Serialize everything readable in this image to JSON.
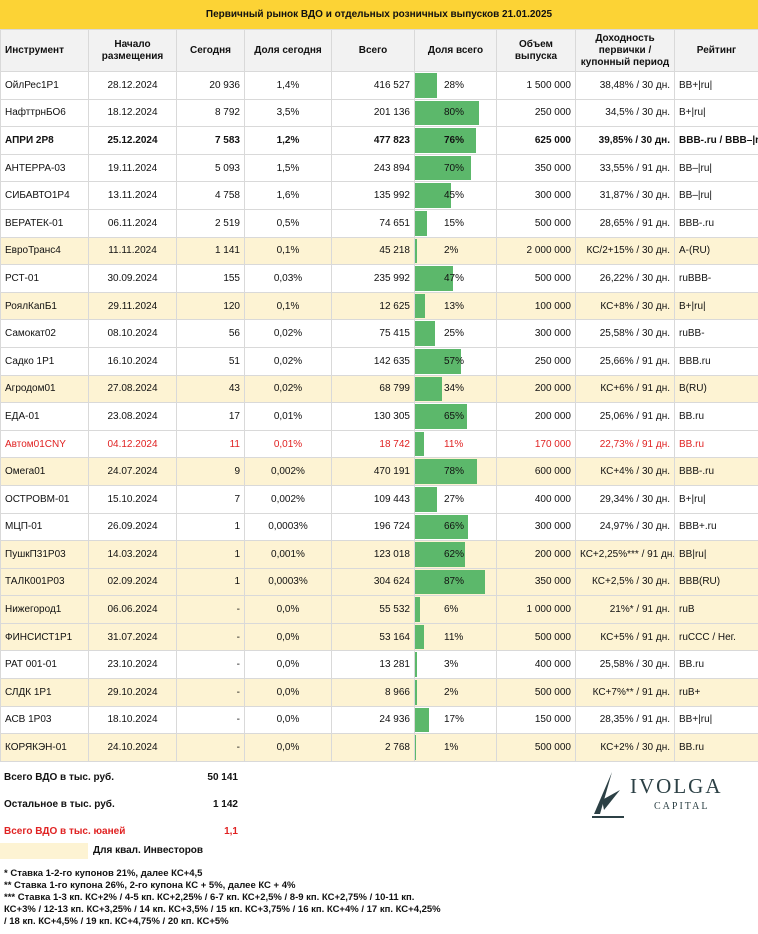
{
  "title": "Первичный рынок ВДО и отдельных розничных выпусков 21.01.2025",
  "colors": {
    "header_bg": "#fcd335",
    "highlight": "#fdf3d3",
    "bar": "#5cb86b",
    "red": "#e02222"
  },
  "columns": {
    "instrument": "Инструмент",
    "start": "Начало размещения",
    "today": "Сегодня",
    "share_today": "Доля сегодня",
    "total": "Всего",
    "share_total": "Доля всего",
    "volume": "Объем выпуска",
    "yield": "Доходность первички / купонный период",
    "rating": "Рейтинг"
  },
  "rows": [
    {
      "name": "ОйлРес1Р1",
      "start": "28.12.2024",
      "today": "20 936",
      "share_today": "1,4%",
      "total": "416 527",
      "share_total": "28%",
      "share_value": 28,
      "volume": "1 500 000",
      "yield": "38,48% / 30 дн.",
      "rating": "BB+|ru|",
      "hl": false,
      "bold": false,
      "red": false
    },
    {
      "name": "НафттрнБО6",
      "start": "18.12.2024",
      "today": "8 792",
      "share_today": "3,5%",
      "total": "201 136",
      "share_total": "80%",
      "share_value": 80,
      "volume": "250 000",
      "yield": "34,5% / 30 дн.",
      "rating": "B+|ru|",
      "hl": false,
      "bold": false,
      "red": false
    },
    {
      "name": "АПРИ 2Р8",
      "start": "25.12.2024",
      "today": "7 583",
      "share_today": "1,2%",
      "total": "477 823",
      "share_total": "76%",
      "share_value": 76,
      "volume": "625 000",
      "yield": "39,85% / 30 дн.",
      "rating": "BBB-.ru / BBB–|ru|",
      "hl": false,
      "bold": true,
      "red": false
    },
    {
      "name": "АНТЕРРА-03",
      "start": "19.11.2024",
      "today": "5 093",
      "share_today": "1,5%",
      "total": "243 894",
      "share_total": "70%",
      "share_value": 70,
      "volume": "350 000",
      "yield": "33,55% / 91 дн.",
      "rating": "BB–|ru|",
      "hl": false,
      "bold": false,
      "red": false
    },
    {
      "name": "СИБАВТО1Р4",
      "start": "13.11.2024",
      "today": "4 758",
      "share_today": "1,6%",
      "total": "135 992",
      "share_total": "45%",
      "share_value": 45,
      "volume": "300 000",
      "yield": "31,87% / 30 дн.",
      "rating": "BB–|ru|",
      "hl": false,
      "bold": false,
      "red": false
    },
    {
      "name": "ВЕРАТЕК-01",
      "start": "06.11.2024",
      "today": "2 519",
      "share_today": "0,5%",
      "total": "74 651",
      "share_total": "15%",
      "share_value": 15,
      "volume": "500 000",
      "yield": "28,65% / 91 дн.",
      "rating": "BBB-.ru",
      "hl": false,
      "bold": false,
      "red": false
    },
    {
      "name": "ЕвроТранс4",
      "start": "11.11.2024",
      "today": "1 141",
      "share_today": "0,1%",
      "total": "45 218",
      "share_total": "2%",
      "share_value": 2,
      "volume": "2 000 000",
      "yield": "КС/2+15% / 30 дн.",
      "rating": "A-(RU)",
      "hl": true,
      "bold": false,
      "red": false
    },
    {
      "name": "РСТ-01",
      "start": "30.09.2024",
      "today": "155",
      "share_today": "0,03%",
      "total": "235 992",
      "share_total": "47%",
      "share_value": 47,
      "volume": "500 000",
      "yield": "26,22% / 30 дн.",
      "rating": "ruBBB-",
      "hl": false,
      "bold": false,
      "red": false
    },
    {
      "name": "РоялКапБ1",
      "start": "29.11.2024",
      "today": "120",
      "share_today": "0,1%",
      "total": "12 625",
      "share_total": "13%",
      "share_value": 13,
      "volume": "100 000",
      "yield": "КС+8% / 30 дн.",
      "rating": "B+|ru|",
      "hl": true,
      "bold": false,
      "red": false
    },
    {
      "name": "Самокат02",
      "start": "08.10.2024",
      "today": "56",
      "share_today": "0,02%",
      "total": "75 415",
      "share_total": "25%",
      "share_value": 25,
      "volume": "300 000",
      "yield": "25,58% / 30 дн.",
      "rating": "ruBB-",
      "hl": false,
      "bold": false,
      "red": false
    },
    {
      "name": "Садко 1Р1",
      "start": "16.10.2024",
      "today": "51",
      "share_today": "0,02%",
      "total": "142 635",
      "share_total": "57%",
      "share_value": 57,
      "volume": "250 000",
      "yield": "25,66% / 91 дн.",
      "rating": "BBB.ru",
      "hl": false,
      "bold": false,
      "red": false
    },
    {
      "name": "Агродом01",
      "start": "27.08.2024",
      "today": "43",
      "share_today": "0,02%",
      "total": "68 799",
      "share_total": "34%",
      "share_value": 34,
      "volume": "200 000",
      "yield": "КС+6% / 91 дн.",
      "rating": "B(RU)",
      "hl": true,
      "bold": false,
      "red": false
    },
    {
      "name": "ЕДА-01",
      "start": "23.08.2024",
      "today": "17",
      "share_today": "0,01%",
      "total": "130 305",
      "share_total": "65%",
      "share_value": 65,
      "volume": "200 000",
      "yield": "25,06% / 91 дн.",
      "rating": "BB.ru",
      "hl": false,
      "bold": false,
      "red": false
    },
    {
      "name": "Автом01CNY",
      "start": "04.12.2024",
      "today": "11",
      "share_today": "0,01%",
      "total": "18 742",
      "share_total": "11%",
      "share_value": 11,
      "volume": "170 000",
      "yield": "22,73% / 91 дн.",
      "rating": "BB.ru",
      "hl": false,
      "bold": false,
      "red": true
    },
    {
      "name": "Омега01",
      "start": "24.07.2024",
      "today": "9",
      "share_today": "0,002%",
      "total": "470 191",
      "share_total": "78%",
      "share_value": 78,
      "volume": "600 000",
      "yield": "КС+4% / 30 дн.",
      "rating": "BBB-.ru",
      "hl": true,
      "bold": false,
      "red": false
    },
    {
      "name": "ОСТРОВМ-01",
      "start": "15.10.2024",
      "today": "7",
      "share_today": "0,002%",
      "total": "109 443",
      "share_total": "27%",
      "share_value": 27,
      "volume": "400 000",
      "yield": "29,34% / 30 дн.",
      "rating": "B+|ru|",
      "hl": false,
      "bold": false,
      "red": false
    },
    {
      "name": "МЦП-01",
      "start": "26.09.2024",
      "today": "1",
      "share_today": "0,0003%",
      "total": "196 724",
      "share_total": "66%",
      "share_value": 66,
      "volume": "300 000",
      "yield": "24,97% / 30 дн.",
      "rating": "BBB+.ru",
      "hl": false,
      "bold": false,
      "red": false
    },
    {
      "name": "ПушкП31Р03",
      "start": "14.03.2024",
      "today": "1",
      "share_today": "0,001%",
      "total": "123 018",
      "share_total": "62%",
      "share_value": 62,
      "volume": "200 000",
      "yield": "КС+2,25%*** / 91 дн.",
      "rating": "BB|ru|",
      "hl": true,
      "bold": false,
      "red": false
    },
    {
      "name": "ТАЛК001Р03",
      "start": "02.09.2024",
      "today": "1",
      "share_today": "0,0003%",
      "total": "304 624",
      "share_total": "87%",
      "share_value": 87,
      "volume": "350 000",
      "yield": "КС+2,5% / 30 дн.",
      "rating": "BBB(RU)",
      "hl": true,
      "bold": false,
      "red": false
    },
    {
      "name": "Нижегород1",
      "start": "06.06.2024",
      "today": "-",
      "share_today": "0,0%",
      "total": "55 532",
      "share_total": "6%",
      "share_value": 6,
      "volume": "1 000 000",
      "yield": "21%* / 91 дн.",
      "rating": "ruB",
      "hl": true,
      "bold": false,
      "red": false
    },
    {
      "name": "ФИНСИСТ1Р1",
      "start": "31.07.2024",
      "today": "-",
      "share_today": "0,0%",
      "total": "53 164",
      "share_total": "11%",
      "share_value": 11,
      "volume": "500 000",
      "yield": "КС+5% / 91 дн.",
      "rating": "ruCCC / Нег.",
      "hl": true,
      "bold": false,
      "red": false
    },
    {
      "name": "РАТ 001-01",
      "start": "23.10.2024",
      "today": "-",
      "share_today": "0,0%",
      "total": "13 281",
      "share_total": "3%",
      "share_value": 3,
      "volume": "400 000",
      "yield": "25,58% / 30 дн.",
      "rating": "BB.ru",
      "hl": false,
      "bold": false,
      "red": false
    },
    {
      "name": "СЛДК 1Р1",
      "start": "29.10.2024",
      "today": "-",
      "share_today": "0,0%",
      "total": "8 966",
      "share_total": "2%",
      "share_value": 2,
      "volume": "500 000",
      "yield": "КС+7%** / 91 дн.",
      "rating": "ruB+",
      "hl": true,
      "bold": false,
      "red": false
    },
    {
      "name": "АСВ 1Р03",
      "start": "18.10.2024",
      "today": "-",
      "share_today": "0,0%",
      "total": "24 936",
      "share_total": "17%",
      "share_value": 17,
      "volume": "150 000",
      "yield": "28,35% / 91 дн.",
      "rating": "BB+|ru|",
      "hl": false,
      "bold": false,
      "red": false
    },
    {
      "name": "КОРЯКЭН-01",
      "start": "24.10.2024",
      "today": "-",
      "share_today": "0,0%",
      "total": "2 768",
      "share_total": "1%",
      "share_value": 1,
      "volume": "500 000",
      "yield": "КС+2% / 30 дн.",
      "rating": "BB.ru",
      "hl": true,
      "bold": false,
      "red": false
    }
  ],
  "totals": [
    {
      "label": "Всего ВДО в тыс. руб.",
      "value": "50 141",
      "red": false
    },
    {
      "label": "Остальное в тыс. руб.",
      "value": "1 142",
      "red": false
    },
    {
      "label": "Всего ВДО в тыс. юаней",
      "value": "1,1",
      "red": true
    }
  ],
  "legend": "Для квал. Инвесторов",
  "notes": [
    "* Ставка 1-2-го купонов 21%, далее КС+4,5",
    "** Ставка 1-го купона 26%, 2-го купона КС + 5%, далее КС + 4%",
    "*** Ставка 1-3 кп. КС+2% / 4-5 кп. КС+2,25% / 6-7 кп. КС+2,5% / 8-9 кп. КС+2,75% / 10-11 кп.",
    "КС+3% / 12-13 кп. КС+3,25% / 14 кп. КС+3,5% / 15 кп. КС+3,75% / 16 кп. КС+4% / 17 кп. КС+4,25%",
    "/ 18 кп. КС+4,5% / 19 кп. КС+4,75% / 20 кп. КС+5%"
  ],
  "logo": {
    "name": "IVOLGA",
    "sub": "CAPITAL",
    "icon": "ivolga-logo-icon"
  }
}
